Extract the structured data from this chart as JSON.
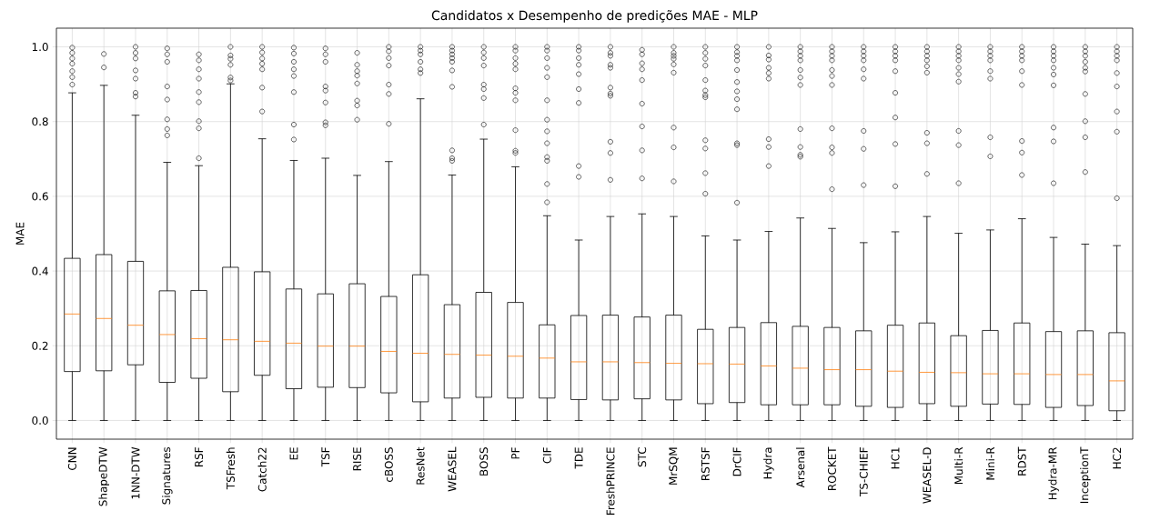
{
  "chart_data": {
    "type": "box",
    "title": "Candidatos x Desempenho de predições MAE - MLP",
    "ylabel": "MAE",
    "categories": [
      "CNN",
      "ShapeDTW",
      "1NN-DTW",
      "Signatures",
      "RSF",
      "TSFresh",
      "Catch22",
      "EE",
      "TSF",
      "RISE",
      "cBOSS",
      "ResNet",
      "WEASEL",
      "BOSS",
      "PF",
      "CIF",
      "TDE",
      "FreshPRINCE",
      "STC",
      "MrSQM",
      "RSTSF",
      "DrCIF",
      "Hydra",
      "Arsenal",
      "ROCKET",
      "TS-CHIEF",
      "HC1",
      "WEASEL-D",
      "Multi-R",
      "Mini-R",
      "RDST",
      "Hydra-MR",
      "InceptionT",
      "HC2"
    ],
    "boxes": [
      {
        "low": 0,
        "q1": 0.131,
        "median": 0.285,
        "q3": 0.434,
        "high": 0.877,
        "outliers": [
          0.998,
          0.984,
          0.969,
          0.955,
          0.935,
          0.919,
          0.899
        ]
      },
      {
        "low": 0,
        "q1": 0.133,
        "median": 0.273,
        "q3": 0.444,
        "high": 0.897,
        "outliers": [
          0.981,
          0.945
        ]
      },
      {
        "low": 0,
        "q1": 0.149,
        "median": 0.255,
        "q3": 0.426,
        "high": 0.817,
        "outliers": [
          1.0,
          0.984,
          0.969,
          0.937,
          0.915,
          0.877,
          0.867
        ]
      },
      {
        "low": 0,
        "q1": 0.102,
        "median": 0.23,
        "q3": 0.347,
        "high": 0.691,
        "outliers": [
          0.996,
          0.98,
          0.96,
          0.894,
          0.859,
          0.806,
          0.78,
          0.763
        ]
      },
      {
        "low": 0,
        "q1": 0.113,
        "median": 0.219,
        "q3": 0.348,
        "high": 0.682,
        "outliers": [
          0.98,
          0.964,
          0.94,
          0.915,
          0.879,
          0.852,
          0.801,
          0.782,
          0.702
        ]
      },
      {
        "low": 0,
        "q1": 0.077,
        "median": 0.216,
        "q3": 0.41,
        "high": 0.901,
        "outliers": [
          1.0,
          0.977,
          0.968,
          0.952,
          0.918,
          0.91
        ]
      },
      {
        "low": 0,
        "q1": 0.121,
        "median": 0.212,
        "q3": 0.398,
        "high": 0.754,
        "outliers": [
          1.0,
          0.985,
          0.969,
          0.955,
          0.94,
          0.891,
          0.827
        ]
      },
      {
        "low": 0,
        "q1": 0.085,
        "median": 0.207,
        "q3": 0.352,
        "high": 0.696,
        "outliers": [
          0.998,
          0.982,
          0.96,
          0.94,
          0.922,
          0.879,
          0.792,
          0.752
        ]
      },
      {
        "low": 0,
        "q1": 0.089,
        "median": 0.199,
        "q3": 0.339,
        "high": 0.702,
        "outliers": [
          0.996,
          0.98,
          0.96,
          0.894,
          0.883,
          0.851,
          0.798,
          0.79
        ]
      },
      {
        "low": 0,
        "q1": 0.088,
        "median": 0.199,
        "q3": 0.366,
        "high": 0.656,
        "outliers": [
          0.984,
          0.952,
          0.935,
          0.923,
          0.902,
          0.856,
          0.843,
          0.805
        ]
      },
      {
        "low": 0,
        "q1": 0.074,
        "median": 0.185,
        "q3": 0.332,
        "high": 0.693,
        "outliers": [
          1.0,
          0.988,
          0.97,
          0.95,
          0.899,
          0.874,
          0.794
        ]
      },
      {
        "low": 0,
        "q1": 0.05,
        "median": 0.18,
        "q3": 0.39,
        "high": 0.861,
        "outliers": [
          1.0,
          0.99,
          0.98,
          0.96,
          0.94,
          0.93
        ]
      },
      {
        "low": 0,
        "q1": 0.06,
        "median": 0.177,
        "q3": 0.31,
        "high": 0.657,
        "outliers": [
          1.0,
          0.99,
          0.98,
          0.97,
          0.96,
          0.937,
          0.893,
          0.723,
          0.702,
          0.695
        ]
      },
      {
        "low": 0,
        "q1": 0.062,
        "median": 0.175,
        "q3": 0.343,
        "high": 0.753,
        "outliers": [
          1.0,
          0.985,
          0.97,
          0.95,
          0.899,
          0.887,
          0.863,
          0.792
        ]
      },
      {
        "low": 0,
        "q1": 0.06,
        "median": 0.172,
        "q3": 0.316,
        "high": 0.679,
        "outliers": [
          1.0,
          0.99,
          0.97,
          0.955,
          0.94,
          0.889,
          0.877,
          0.857,
          0.777,
          0.722,
          0.716
        ]
      },
      {
        "low": 0,
        "q1": 0.06,
        "median": 0.167,
        "q3": 0.256,
        "high": 0.548,
        "outliers": [
          1.0,
          0.99,
          0.97,
          0.944,
          0.919,
          0.857,
          0.805,
          0.774,
          0.742,
          0.705,
          0.695,
          0.633,
          0.584
        ]
      },
      {
        "low": 0,
        "q1": 0.056,
        "median": 0.157,
        "q3": 0.281,
        "high": 0.483,
        "outliers": [
          1.0,
          0.99,
          0.97,
          0.952,
          0.927,
          0.887,
          0.85,
          0.681,
          0.652
        ]
      },
      {
        "low": 0,
        "q1": 0.055,
        "median": 0.157,
        "q3": 0.282,
        "high": 0.546,
        "outliers": [
          1.0,
          0.984,
          0.976,
          0.952,
          0.944,
          0.891,
          0.875,
          0.869,
          0.746,
          0.716,
          0.644
        ]
      },
      {
        "low": 0,
        "q1": 0.058,
        "median": 0.155,
        "q3": 0.277,
        "high": 0.553,
        "outliers": [
          0.992,
          0.98,
          0.956,
          0.94,
          0.911,
          0.848,
          0.787,
          0.723,
          0.648
        ]
      },
      {
        "low": 0,
        "q1": 0.055,
        "median": 0.153,
        "q3": 0.282,
        "high": 0.546,
        "outliers": [
          1.0,
          0.984,
          0.976,
          0.968,
          0.953,
          0.931,
          0.784,
          0.731,
          0.64
        ]
      },
      {
        "low": 0,
        "q1": 0.045,
        "median": 0.152,
        "q3": 0.244,
        "high": 0.494,
        "outliers": [
          1.0,
          0.984,
          0.968,
          0.95,
          0.911,
          0.883,
          0.871,
          0.865,
          0.75,
          0.728,
          0.662,
          0.607
        ]
      },
      {
        "low": 0,
        "q1": 0.048,
        "median": 0.151,
        "q3": 0.249,
        "high": 0.483,
        "outliers": [
          1.0,
          0.986,
          0.976,
          0.964,
          0.938,
          0.906,
          0.881,
          0.86,
          0.833,
          0.742,
          0.737,
          0.583
        ]
      },
      {
        "low": 0,
        "q1": 0.042,
        "median": 0.146,
        "q3": 0.262,
        "high": 0.506,
        "outliers": [
          1.0,
          0.977,
          0.966,
          0.944,
          0.93,
          0.915,
          0.753,
          0.732,
          0.681
        ]
      },
      {
        "low": 0,
        "q1": 0.042,
        "median": 0.14,
        "q3": 0.252,
        "high": 0.542,
        "outliers": [
          1.0,
          0.988,
          0.976,
          0.964,
          0.938,
          0.918,
          0.898,
          0.78,
          0.732,
          0.711,
          0.706
        ]
      },
      {
        "low": 0,
        "q1": 0.042,
        "median": 0.136,
        "q3": 0.249,
        "high": 0.514,
        "outliers": [
          1.0,
          0.988,
          0.976,
          0.964,
          0.938,
          0.922,
          0.898,
          0.782,
          0.731,
          0.716,
          0.619
        ]
      },
      {
        "low": 0,
        "q1": 0.038,
        "median": 0.136,
        "q3": 0.24,
        "high": 0.476,
        "outliers": [
          1.0,
          0.988,
          0.976,
          0.964,
          0.94,
          0.915,
          0.775,
          0.727,
          0.63
        ]
      },
      {
        "low": 0,
        "q1": 0.035,
        "median": 0.132,
        "q3": 0.255,
        "high": 0.505,
        "outliers": [
          1.0,
          0.988,
          0.976,
          0.964,
          0.935,
          0.877,
          0.811,
          0.74,
          0.627
        ]
      },
      {
        "low": 0,
        "q1": 0.045,
        "median": 0.129,
        "q3": 0.261,
        "high": 0.546,
        "outliers": [
          1.0,
          0.988,
          0.976,
          0.964,
          0.948,
          0.931,
          0.77,
          0.742,
          0.66
        ]
      },
      {
        "low": 0,
        "q1": 0.038,
        "median": 0.128,
        "q3": 0.227,
        "high": 0.501,
        "outliers": [
          1.0,
          0.988,
          0.976,
          0.964,
          0.944,
          0.927,
          0.907,
          0.775,
          0.737,
          0.635
        ]
      },
      {
        "low": 0,
        "q1": 0.044,
        "median": 0.125,
        "q3": 0.241,
        "high": 0.51,
        "outliers": [
          1.0,
          0.988,
          0.976,
          0.964,
          0.935,
          0.915,
          0.758,
          0.707
        ]
      },
      {
        "low": 0,
        "q1": 0.043,
        "median": 0.125,
        "q3": 0.261,
        "high": 0.54,
        "outliers": [
          1.0,
          0.988,
          0.976,
          0.964,
          0.935,
          0.898,
          0.748,
          0.717,
          0.657
        ]
      },
      {
        "low": 0,
        "q1": 0.035,
        "median": 0.123,
        "q3": 0.238,
        "high": 0.49,
        "outliers": [
          1.0,
          0.988,
          0.976,
          0.964,
          0.944,
          0.926,
          0.897,
          0.784,
          0.747,
          0.635
        ]
      },
      {
        "low": 0,
        "q1": 0.04,
        "median": 0.123,
        "q3": 0.24,
        "high": 0.472,
        "outliers": [
          1.0,
          0.988,
          0.976,
          0.96,
          0.944,
          0.934,
          0.874,
          0.801,
          0.758,
          0.665
        ]
      },
      {
        "low": 0,
        "q1": 0.026,
        "median": 0.106,
        "q3": 0.235,
        "high": 0.468,
        "outliers": [
          1.0,
          0.988,
          0.976,
          0.964,
          0.93,
          0.894,
          0.827,
          0.773,
          0.595
        ]
      }
    ],
    "ylim": [
      -0.05,
      1.05
    ],
    "yticks": [
      {
        "value": 0,
        "label": "0.0"
      },
      0.2,
      0.4,
      0.6,
      0.8,
      {
        "value": 1,
        "label": "1.0"
      }
    ],
    "grid": true,
    "marker": "circle"
  }
}
